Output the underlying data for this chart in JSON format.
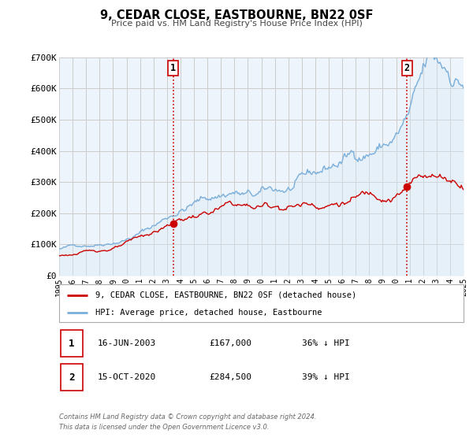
{
  "title": "9, CEDAR CLOSE, EASTBOURNE, BN22 0SF",
  "subtitle": "Price paid vs. HM Land Registry's House Price Index (HPI)",
  "legend_label_red": "9, CEDAR CLOSE, EASTBOURNE, BN22 0SF (detached house)",
  "legend_label_blue": "HPI: Average price, detached house, Eastbourne",
  "transaction1_date": "16-JUN-2003",
  "transaction1_price": "£167,000",
  "transaction1_hpi": "36% ↓ HPI",
  "transaction2_date": "15-OCT-2020",
  "transaction2_price": "£284,500",
  "transaction2_hpi": "39% ↓ HPI",
  "footnote1": "Contains HM Land Registry data © Crown copyright and database right 2024.",
  "footnote2": "This data is licensed under the Open Government Licence v3.0.",
  "ylim": [
    0,
    700000
  ],
  "yticks": [
    0,
    100000,
    200000,
    300000,
    400000,
    500000,
    600000,
    700000
  ],
  "ytick_labels": [
    "£0",
    "£100K",
    "£200K",
    "£300K",
    "£400K",
    "£500K",
    "£600K",
    "£700K"
  ],
  "color_red": "#cc0000",
  "color_blue": "#7aafdb",
  "color_blue_fill": "#d6e8f5",
  "color_grid": "#cccccc",
  "color_bg": "#eef4fb",
  "vline1_x": 2003.458,
  "vline2_x": 2020.792,
  "marker1_x": 2003.458,
  "marker1_y": 167000,
  "marker2_x": 2020.792,
  "marker2_y": 284500,
  "xmin": 1995,
  "xmax": 2025,
  "xticks": [
    1995,
    1996,
    1997,
    1998,
    1999,
    2000,
    2001,
    2002,
    2003,
    2004,
    2005,
    2006,
    2007,
    2008,
    2009,
    2010,
    2011,
    2012,
    2013,
    2014,
    2015,
    2016,
    2017,
    2018,
    2019,
    2020,
    2021,
    2022,
    2023,
    2024,
    2025
  ]
}
